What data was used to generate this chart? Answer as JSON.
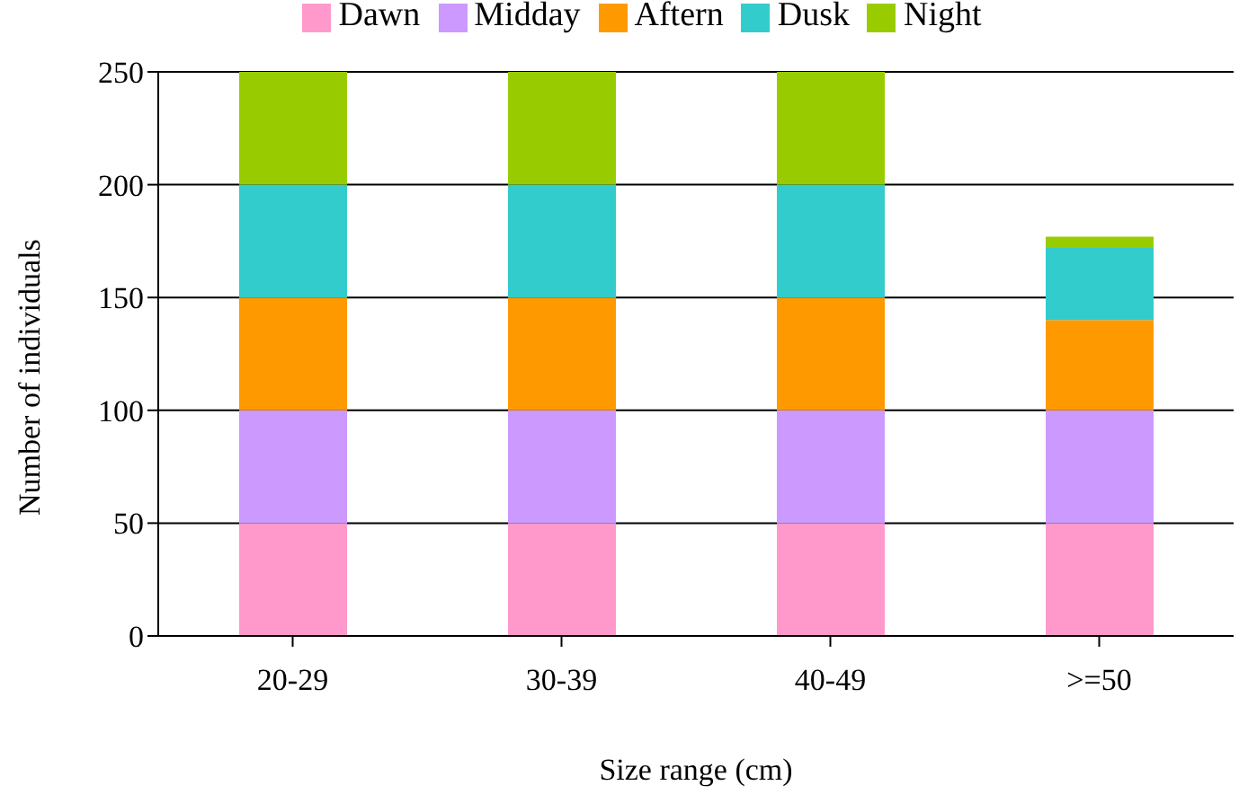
{
  "chart_data": {
    "type": "bar",
    "stacked": true,
    "xlabel": "Size range (cm)",
    "ylabel": "Number of individuals",
    "categories": [
      "20-29",
      "30-39",
      "40-49",
      ">=50"
    ],
    "series": [
      {
        "name": "Dawn",
        "color": "#ff99cc",
        "values": [
          50,
          50,
          50,
          50
        ]
      },
      {
        "name": "Midday",
        "color": "#cc99ff",
        "values": [
          50,
          50,
          50,
          50
        ]
      },
      {
        "name": "Aftern",
        "color": "#ff9900",
        "values": [
          50,
          50,
          50,
          40
        ]
      },
      {
        "name": "Dusk",
        "color": "#33cccc",
        "values": [
          50,
          50,
          50,
          32
        ]
      },
      {
        "name": "Night",
        "color": "#99cc00",
        "values": [
          50,
          50,
          50,
          5
        ]
      }
    ],
    "ylim": [
      0,
      250
    ],
    "yticks": [
      0,
      50,
      100,
      150,
      200,
      250
    ],
    "grid": "y",
    "legend": "top"
  }
}
